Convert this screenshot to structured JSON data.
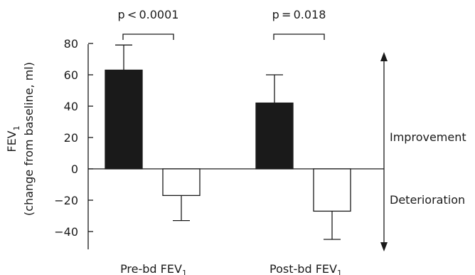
{
  "chart_data": {
    "type": "bar",
    "ylabel_main": "FEV",
    "ylabel_sub": "1",
    "ylabel_line2": "(change from baseline, ml)",
    "ylim": [
      -50,
      80
    ],
    "yticks": [
      80,
      60,
      40,
      20,
      0,
      -20,
      -40
    ],
    "ytick_labels": [
      "80",
      "60",
      "40",
      "20",
      "0",
      "−20",
      "−40"
    ],
    "groups": [
      {
        "label_main": "Pre-bd FEV",
        "label_sub": "1",
        "p_label": "p < 0.0001",
        "bars": [
          {
            "fill": "black",
            "value": 63,
            "error": 16
          },
          {
            "fill": "white",
            "value": -17,
            "error": 16
          }
        ]
      },
      {
        "label_main": "Post-bd FEV",
        "label_sub": "1",
        "p_label": "p = 0.018",
        "bars": [
          {
            "fill": "black",
            "value": 42,
            "error": 18
          },
          {
            "fill": "white",
            "value": -27,
            "error": 18
          }
        ]
      }
    ],
    "annotations": {
      "up": "Improvement",
      "down": "Deterioration"
    },
    "colors": {
      "filled": "#1a1a1a",
      "open": "#ffffff",
      "line": "#1a1a1a"
    }
  }
}
